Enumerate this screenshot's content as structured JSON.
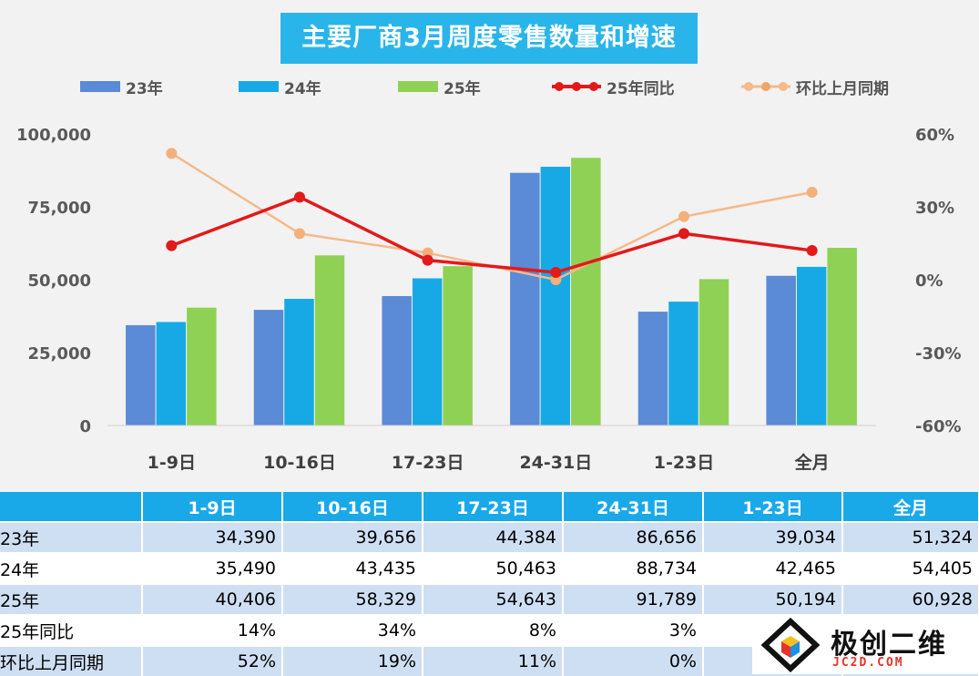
{
  "chart_data": {
    "type": "bar",
    "title": "主要厂商3月周度零售数量和增速",
    "categories": [
      "1-9日",
      "10-16日",
      "17-23日",
      "24-31日",
      "1-23日",
      "全月"
    ],
    "series": [
      {
        "name": "23年",
        "kind": "bar",
        "axis": "left",
        "color": "#5b8ad6",
        "values": [
          34390,
          39656,
          44384,
          86656,
          39034,
          51324
        ]
      },
      {
        "name": "24年",
        "kind": "bar",
        "axis": "left",
        "color": "#17a9e6",
        "values": [
          35490,
          43435,
          50463,
          88734,
          42465,
          54405
        ]
      },
      {
        "name": "25年",
        "kind": "bar",
        "axis": "left",
        "color": "#8fd155",
        "values": [
          40406,
          58329,
          54643,
          91789,
          50194,
          60928
        ]
      },
      {
        "name": "25年同比",
        "kind": "line",
        "axis": "right",
        "color": "#e3191b",
        "values": [
          14,
          34,
          8,
          3,
          19,
          12
        ]
      },
      {
        "name": "环比上月同期",
        "kind": "line",
        "axis": "right",
        "color": "#f5b98a",
        "values": [
          52,
          19,
          11,
          0,
          26,
          36
        ]
      }
    ],
    "y_left": {
      "ylim": [
        0,
        100000
      ],
      "ticks": [
        "0",
        "25,000",
        "50,000",
        "75,000",
        "100,000"
      ],
      "tick_values": [
        0,
        25000,
        50000,
        75000,
        100000
      ]
    },
    "y_right": {
      "ylim": [
        -60,
        60
      ],
      "ticks": [
        "-60%",
        "-30%",
        "0%",
        "30%",
        "60%"
      ],
      "tick_values": [
        -60,
        -30,
        0,
        30,
        60
      ]
    },
    "grid": false,
    "legend_position": "top"
  },
  "table": {
    "headers": [
      "",
      "1-9日",
      "10-16日",
      "17-23日",
      "24-31日",
      "1-23日",
      "全月"
    ],
    "rows": [
      {
        "label": "23年",
        "cells": [
          "34,390",
          "39,656",
          "44,384",
          "86,656",
          "39,034",
          "51,324"
        ]
      },
      {
        "label": "24年",
        "cells": [
          "35,490",
          "43,435",
          "50,463",
          "88,734",
          "42,465",
          "54,405"
        ]
      },
      {
        "label": "25年",
        "cells": [
          "40,406",
          "58,329",
          "54,643",
          "91,789",
          "50,194",
          "60,928"
        ]
      },
      {
        "label": "25年同比",
        "cells": [
          "14%",
          "34%",
          "8%",
          "3%",
          "",
          ""
        ]
      },
      {
        "label": "环比上月同期",
        "cells": [
          "52%",
          "19%",
          "11%",
          "0%",
          "",
          ""
        ]
      }
    ]
  },
  "watermark": {
    "text": "极创二维",
    "sub": "JC2D.COM"
  }
}
